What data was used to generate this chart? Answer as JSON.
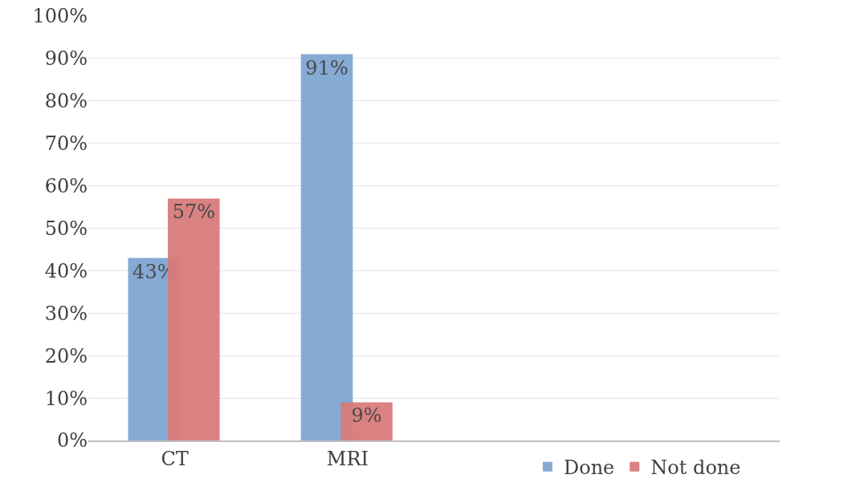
{
  "chart_data": {
    "type": "bar",
    "categories": [
      "CT",
      "MRI",
      null,
      null
    ],
    "series": [
      {
        "name": "Done",
        "color": "#7fa6d2",
        "values": [
          43,
          91,
          null,
          null
        ],
        "value_labels": [
          "43%",
          "91%",
          null,
          null
        ]
      },
      {
        "name": "Not done",
        "color": "#d97b7b",
        "values": [
          57,
          9,
          null,
          null
        ],
        "value_labels": [
          "57%",
          "9%",
          null,
          null
        ]
      }
    ],
    "ylim": [
      0,
      100
    ],
    "yticks": [
      {
        "value": 0,
        "label": "0%"
      },
      {
        "value": 10,
        "label": "10%"
      },
      {
        "value": 20,
        "label": "20%"
      },
      {
        "value": 30,
        "label": "30%"
      },
      {
        "value": 40,
        "label": "40%"
      },
      {
        "value": 50,
        "label": "50%"
      },
      {
        "value": 60,
        "label": "60%"
      },
      {
        "value": 70,
        "label": "70%"
      },
      {
        "value": 80,
        "label": "80%"
      },
      {
        "value": 90,
        "label": "90%"
      },
      {
        "value": 100,
        "label": "100%"
      }
    ],
    "grid": "y",
    "legend": "bottom right"
  }
}
